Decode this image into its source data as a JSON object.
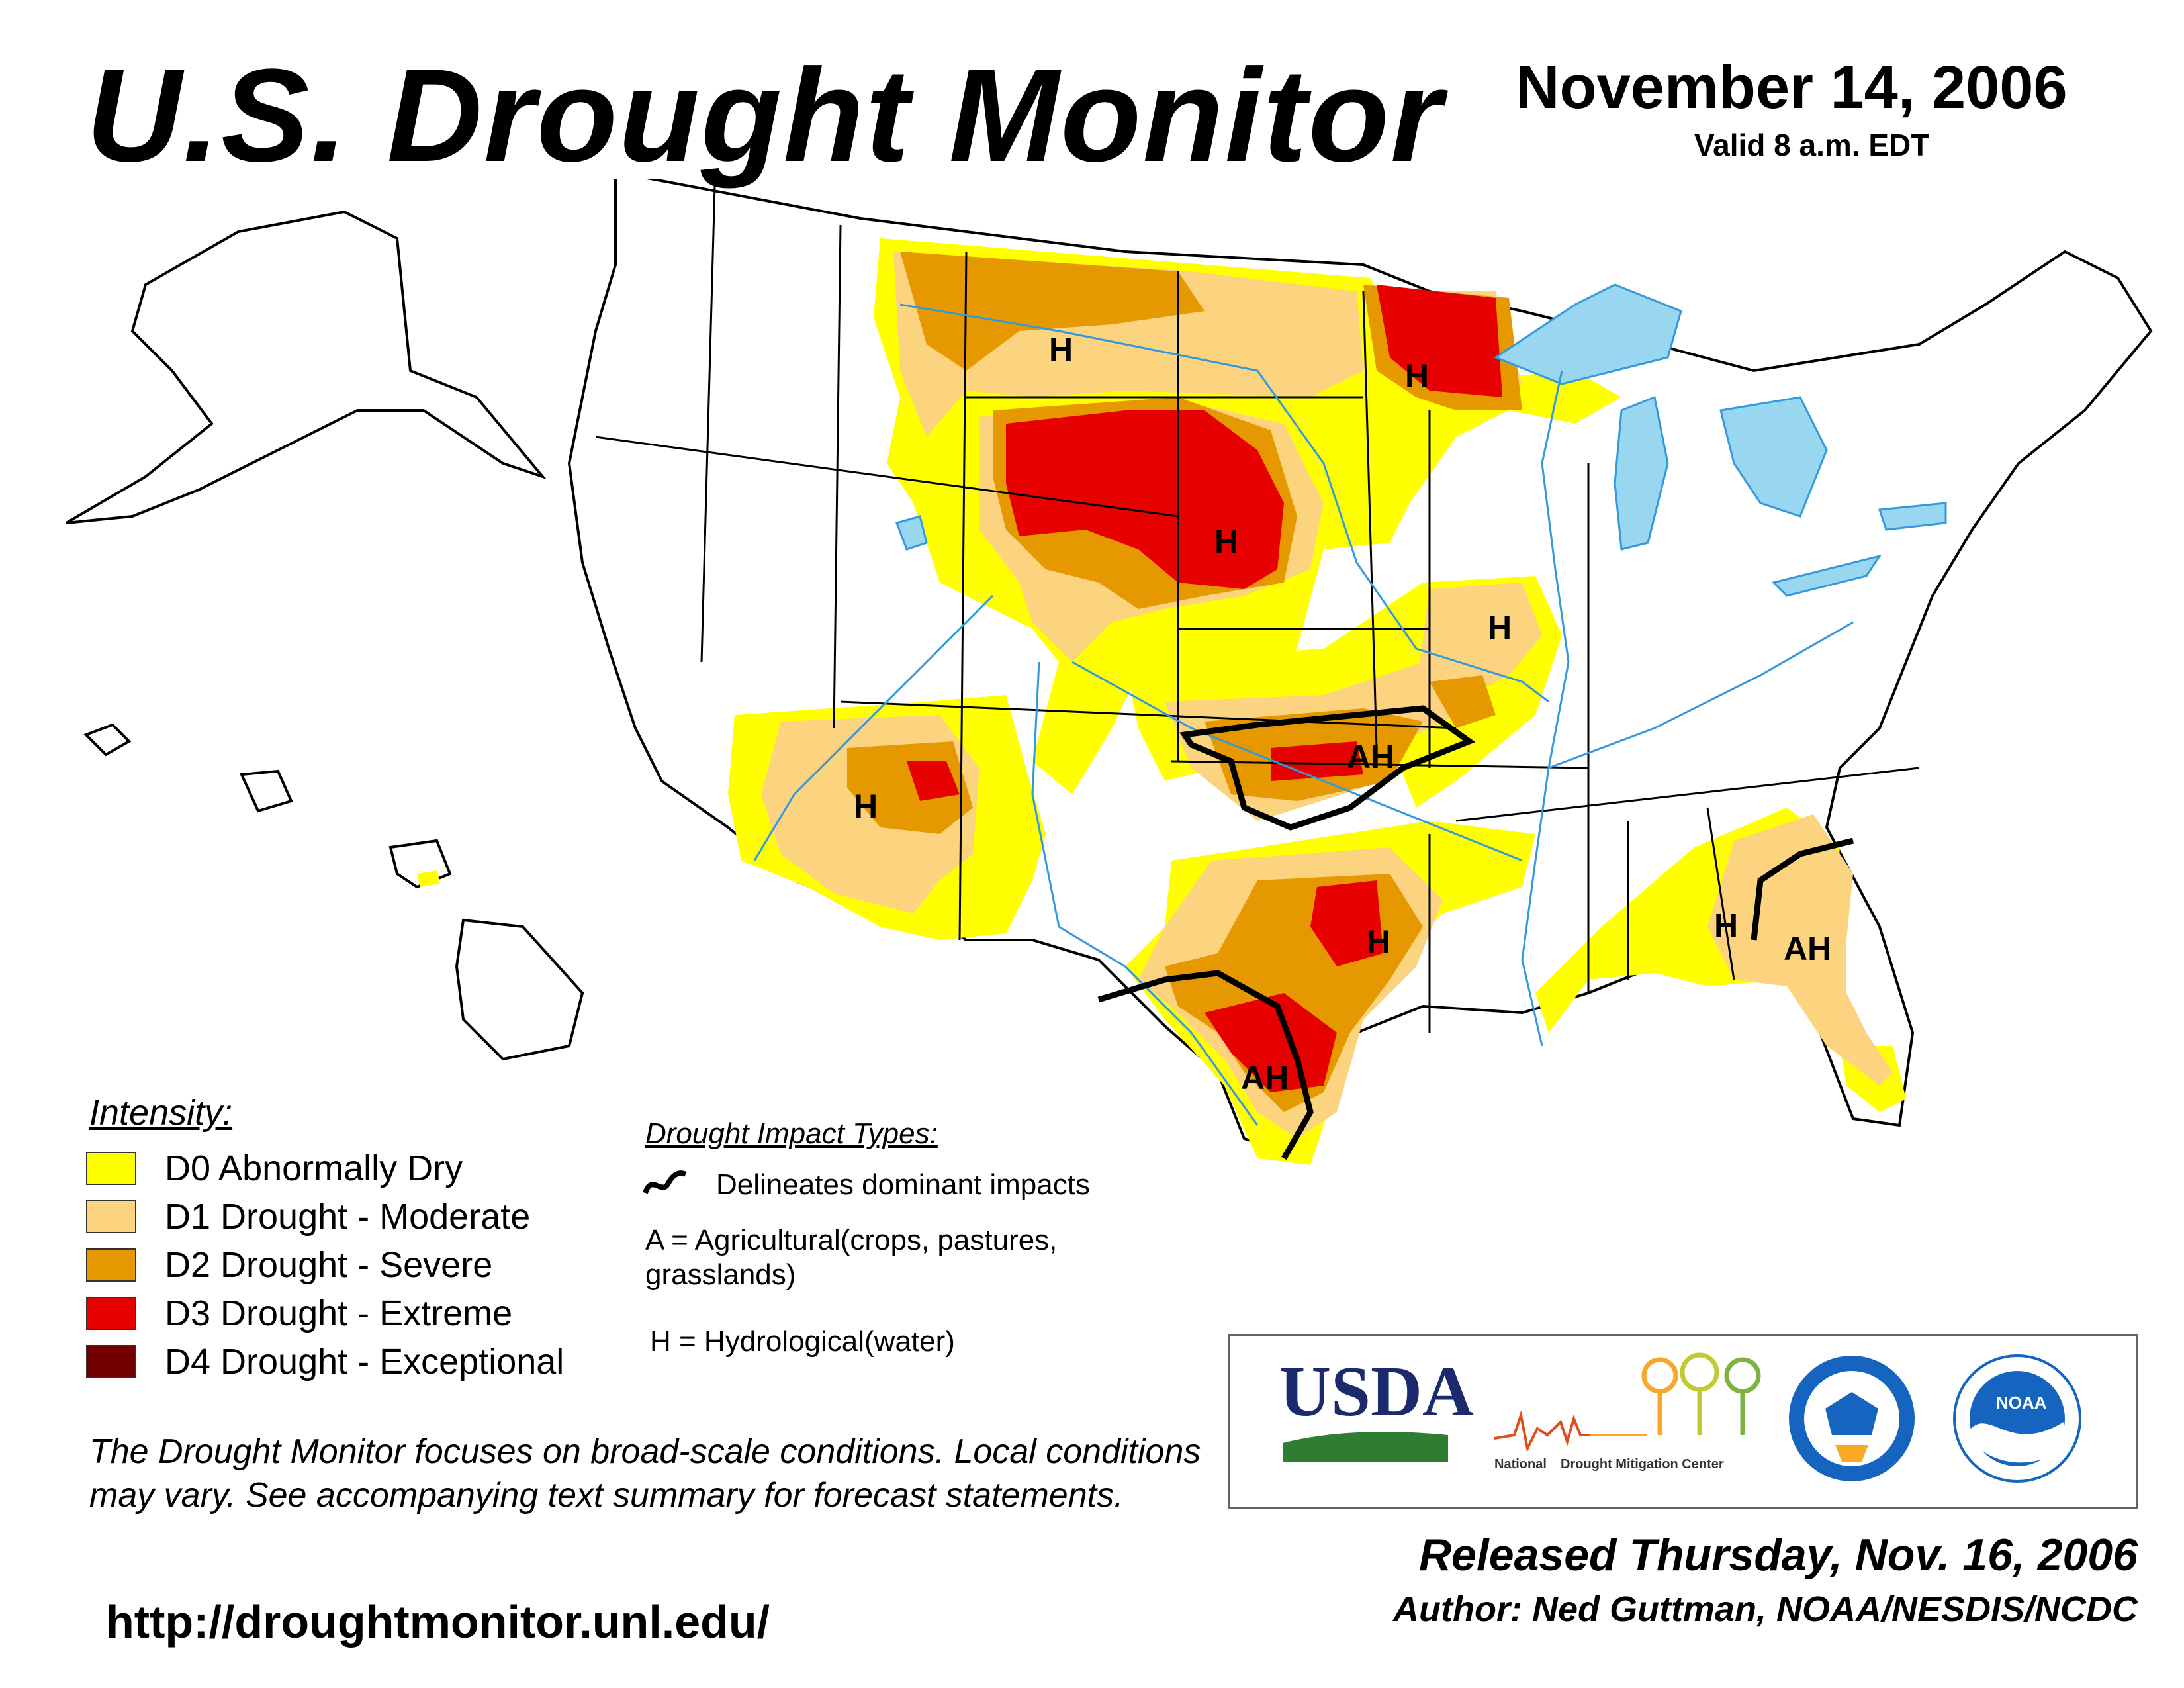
{
  "header": {
    "title": "U.S. Drought Monitor",
    "date": "November 14, 2006",
    "valid": "Valid 8 a.m. EDT"
  },
  "legend": {
    "title": "Intensity:",
    "items": [
      {
        "label": "D0 Abnormally Dry",
        "color": "#ffff00"
      },
      {
        "label": "D1 Drought - Moderate",
        "color": "#fcd37f"
      },
      {
        "label": "D2 Drought - Severe",
        "color": "#e69800"
      },
      {
        "label": "D3 Drought - Extreme",
        "color": "#e60000"
      },
      {
        "label": "D4 Drought - Exceptional",
        "color": "#730000"
      }
    ]
  },
  "impacts": {
    "title": "Drought Impact Types:",
    "line_label": "Delineates dominant impacts",
    "a_label": "A = Agricultural(crops, pastures, grasslands)",
    "h_label": "H = Hydrological(water)"
  },
  "map": {
    "region_labels": [
      {
        "text": "H"
      },
      {
        "text": "H"
      },
      {
        "text": "H"
      },
      {
        "text": "H"
      },
      {
        "text": "AH"
      },
      {
        "text": "H"
      },
      {
        "text": "H"
      },
      {
        "text": "AH"
      },
      {
        "text": "H"
      },
      {
        "text": "AH"
      }
    ],
    "colors": {
      "water": "#99d6f0",
      "river": "#3399dd",
      "state_border": "#000000",
      "county_border": "#999999"
    }
  },
  "disclaimer": "The Drought Monitor focuses on broad-scale conditions. Local conditions may vary. See accompanying text summary for forecast statements.",
  "url": "http://droughtmonitor.unl.edu/",
  "logos": {
    "usda": "USDA",
    "ndmc": "National Drought Mitigation Center",
    "ndmc_left": "National",
    "ndmc_right": "Drought Mitigation Center",
    "noaa": "NOAA"
  },
  "footer": {
    "released": "Released Thursday, Nov. 16, 2006",
    "author": "Author: Ned Guttman, NOAA/NESDIS/NCDC"
  }
}
